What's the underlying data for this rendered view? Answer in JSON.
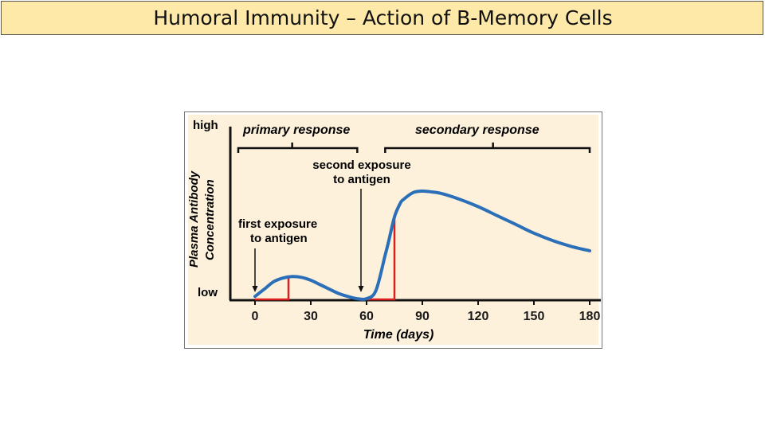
{
  "title": "Humoral Immunity – Action of B-Memory Cells",
  "colors": {
    "title_bg": "#ffe9a8",
    "figure_bg": "#fdf1dc",
    "curve": "#2a6fb8",
    "highlight": "#dd1e1e",
    "level_label": "#2233aa",
    "text": "#1a1a1a"
  },
  "chart_data": {
    "type": "line",
    "xlabel": "Time (days)",
    "ylabel": "Plasma Antibody Concentration",
    "ylabel_lines": [
      "Plasma Antibody",
      "Concentration"
    ],
    "x_ticks": [
      0,
      30,
      60,
      90,
      120,
      150,
      180
    ],
    "xlim": [
      0,
      180
    ],
    "y_range_labels": {
      "high": "high",
      "low": "low"
    },
    "series": [
      {
        "x": [
          0,
          5,
          10,
          15,
          20,
          25,
          30,
          35,
          40,
          45,
          50,
          55,
          60,
          65,
          70,
          72,
          75,
          78,
          80,
          85,
          90,
          95,
          100,
          110,
          120,
          130,
          140,
          150,
          160,
          170,
          180
        ],
        "y": [
          0.02,
          0.07,
          0.12,
          0.145,
          0.155,
          0.15,
          0.13,
          0.1,
          0.07,
          0.04,
          0.02,
          0.005,
          0.005,
          0.06,
          0.3,
          0.4,
          0.56,
          0.65,
          0.68,
          0.725,
          0.735,
          0.73,
          0.72,
          0.68,
          0.63,
          0.57,
          0.51,
          0.45,
          0.4,
          0.36,
          0.33
        ]
      }
    ],
    "annotations": {
      "primary_response": "primary response",
      "secondary_response": "secondary response",
      "first_exposure": [
        "first exposure",
        "to antigen"
      ],
      "second_exposure": [
        "second exposure",
        "to antigen"
      ]
    },
    "highlight_intervals": [
      {
        "x_start": 0,
        "x_end": 18,
        "peak_y": 0.155
      },
      {
        "x_start": 57,
        "x_end": 75,
        "peak_y": 0.56
      }
    ]
  }
}
